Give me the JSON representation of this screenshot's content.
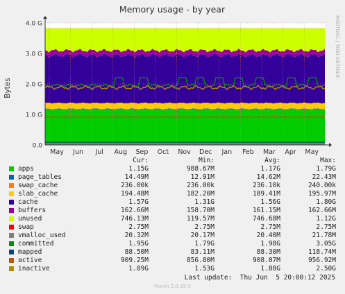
{
  "chart_data": {
    "type": "area",
    "title": "Memory usage - by year",
    "ylabel": "Bytes",
    "yticks": [
      "0.0",
      "1.0 G",
      "2.0 G",
      "3.0 G",
      "4.0 G"
    ],
    "ylim": [
      0,
      4.0
    ],
    "y_unit": "G",
    "xticks": [
      "May",
      "Jun",
      "Jul",
      "Aug",
      "Sep",
      "Oct",
      "Nov",
      "Dec",
      "Jan",
      "Feb",
      "Mar",
      "Apr",
      "May"
    ],
    "grid": true,
    "side_label": "RRDTOOL / TOBI OETIKER",
    "stacked_series": [
      {
        "name": "apps",
        "color": "#00cc00",
        "avg": 1.17
      },
      {
        "name": "page_tables",
        "color": "#0066b3",
        "avg": 0.0146
      },
      {
        "name": "swap_cache",
        "color": "#ff8000",
        "avg": 0.0
      },
      {
        "name": "slab_cache",
        "color": "#ffcc00",
        "avg": 0.189
      },
      {
        "name": "cache",
        "color": "#330099",
        "avg": 1.56
      },
      {
        "name": "buffers",
        "color": "#990099",
        "avg": 0.161
      },
      {
        "name": "unused",
        "color": "#ccff00",
        "avg": 0.747
      },
      {
        "name": "swap",
        "color": "#ff0000",
        "avg": 0.00275
      }
    ],
    "line_series": [
      {
        "name": "vmalloc_used",
        "color": "#808080",
        "avg": 0.0204
      },
      {
        "name": "committed",
        "color": "#008f00",
        "avg": 1.98
      },
      {
        "name": "mapped",
        "color": "#00487d",
        "avg": 0.0883
      },
      {
        "name": "active",
        "color": "#b35a00",
        "avg": 0.908
      },
      {
        "name": "inactive",
        "color": "#b38f00",
        "avg": 1.88
      }
    ]
  },
  "legend": {
    "headers": {
      "cur": "Cur:",
      "min": "Min:",
      "avg": "Avg:",
      "max": "Max:"
    },
    "rows": [
      {
        "name": "apps",
        "color": "#00cc00",
        "cur": "1.15G",
        "min": "988.67M",
        "avg": "1.17G",
        "max": "1.79G"
      },
      {
        "name": "page_tables",
        "color": "#0066b3",
        "cur": "14.49M",
        "min": "12.91M",
        "avg": "14.62M",
        "max": "22.43M"
      },
      {
        "name": "swap_cache",
        "color": "#ff8000",
        "cur": "236.00k",
        "min": "236.00k",
        "avg": "236.10k",
        "max": "240.00k"
      },
      {
        "name": "slab_cache",
        "color": "#ffcc00",
        "cur": "194.48M",
        "min": "182.20M",
        "avg": "189.41M",
        "max": "195.97M"
      },
      {
        "name": "cache",
        "color": "#330099",
        "cur": "1.57G",
        "min": "1.31G",
        "avg": "1.56G",
        "max": "1.80G"
      },
      {
        "name": "buffers",
        "color": "#990099",
        "cur": "162.66M",
        "min": "158.70M",
        "avg": "161.15M",
        "max": "162.66M"
      },
      {
        "name": "unused",
        "color": "#ccff00",
        "cur": "746.13M",
        "min": "119.57M",
        "avg": "746.68M",
        "max": "1.12G"
      },
      {
        "name": "swap",
        "color": "#ff0000",
        "cur": "2.75M",
        "min": "2.75M",
        "avg": "2.75M",
        "max": "2.75M"
      },
      {
        "name": "vmalloc_used",
        "color": "#808080",
        "cur": "20.32M",
        "min": "20.17M",
        "avg": "20.40M",
        "max": "21.78M"
      },
      {
        "name": "committed",
        "color": "#008f00",
        "cur": "1.95G",
        "min": "1.79G",
        "avg": "1.98G",
        "max": "3.05G"
      },
      {
        "name": "mapped",
        "color": "#00487d",
        "cur": "88.50M",
        "min": "83.11M",
        "avg": "88.30M",
        "max": "118.74M"
      },
      {
        "name": "active",
        "color": "#b35a00",
        "cur": "909.25M",
        "min": "856.80M",
        "avg": "908.07M",
        "max": "956.92M"
      },
      {
        "name": "inactive",
        "color": "#b38f00",
        "cur": "1.89G",
        "min": "1.53G",
        "avg": "1.88G",
        "max": "2.50G"
      }
    ]
  },
  "footer": {
    "last_update": "Last update:  Thu Jun  5 20:00:12 2025",
    "munin": "Munin 2.0.19-3"
  }
}
